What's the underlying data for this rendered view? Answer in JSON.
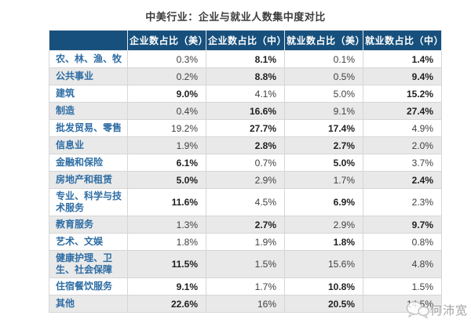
{
  "title": "中美行业：企业与就业人数集中度对比",
  "chart_data": {
    "type": "table",
    "title": "中美行业：企业与就业人数集中度对比",
    "columns": [
      "",
      "企业数占比（美）",
      "企业数占比（中）",
      "就业数占比（美）",
      "就业数占比（中）"
    ],
    "rows": [
      {
        "label": "农、林、渔、牧",
        "values": [
          "0.3%",
          "8.1%",
          "0.1%",
          "1.4%"
        ],
        "bold": [
          false,
          true,
          false,
          true
        ],
        "tall": false
      },
      {
        "label": "公共事业",
        "values": [
          "0.2%",
          "8.8%",
          "0.5%",
          "9.4%"
        ],
        "bold": [
          false,
          true,
          false,
          true
        ],
        "tall": false
      },
      {
        "label": "建筑",
        "values": [
          "9.0%",
          "4.1%",
          "5.0%",
          "15.2%"
        ],
        "bold": [
          true,
          false,
          false,
          true
        ],
        "tall": false
      },
      {
        "label": "制造",
        "values": [
          "0.4%",
          "16.6%",
          "9.1%",
          "27.4%"
        ],
        "bold": [
          false,
          true,
          false,
          true
        ],
        "tall": false
      },
      {
        "label": "批发贸易、零售",
        "values": [
          "19.2%",
          "27.7%",
          "17.4%",
          "4.9%"
        ],
        "bold": [
          false,
          true,
          true,
          false
        ],
        "tall": false
      },
      {
        "label": "信息业",
        "values": [
          "1.9%",
          "2.8%",
          "2.7%",
          "2.0%"
        ],
        "bold": [
          false,
          true,
          true,
          false
        ],
        "tall": false
      },
      {
        "label": "金融和保险",
        "values": [
          "6.1%",
          "0.7%",
          "5.0%",
          "3.7%"
        ],
        "bold": [
          true,
          false,
          true,
          false
        ],
        "tall": false
      },
      {
        "label": "房地产和租赁",
        "values": [
          "5.0%",
          "2.9%",
          "1.7%",
          "2.4%"
        ],
        "bold": [
          true,
          false,
          false,
          true
        ],
        "tall": false
      },
      {
        "label": "专业、科学与技术服务",
        "values": [
          "11.6%",
          "4.5%",
          "6.9%",
          "2.3%"
        ],
        "bold": [
          true,
          false,
          true,
          false
        ],
        "tall": true
      },
      {
        "label": "教育服务",
        "values": [
          "1.3%",
          "2.7%",
          "2.9%",
          "9.7%"
        ],
        "bold": [
          false,
          true,
          false,
          true
        ],
        "tall": false
      },
      {
        "label": "艺术、文娱",
        "values": [
          "1.8%",
          "1.9%",
          "1.8%",
          "0.8%"
        ],
        "bold": [
          false,
          false,
          true,
          false
        ],
        "tall": false
      },
      {
        "label": "健康护理、卫生、社会保障",
        "values": [
          "11.5%",
          "1.5%",
          "15.6%",
          "4.8%"
        ],
        "bold": [
          true,
          false,
          false,
          false
        ],
        "tall": true
      },
      {
        "label": "住宿餐饮服务",
        "values": [
          "9.1%",
          "1.7%",
          "10.8%",
          "1.5%"
        ],
        "bold": [
          true,
          false,
          true,
          false
        ],
        "tall": false
      },
      {
        "label": "其他",
        "values": [
          "22.6%",
          "16%",
          "20.5%",
          "14.5%"
        ],
        "bold": [
          true,
          false,
          true,
          false
        ],
        "tall": false
      }
    ]
  },
  "watermark": {
    "text": "何沛宽",
    "icon": "chat-bubbles-icon"
  },
  "colors": {
    "header_bg": "#17507c",
    "header_text": "#ffffff",
    "label_text": "#2e6da4",
    "value_text": "#3f3f3f",
    "stripe_bg": "#e9e9e9",
    "border": "#d6d6d6",
    "title_text": "#3d3d3d",
    "watermark_text": "#a3a3a3"
  }
}
